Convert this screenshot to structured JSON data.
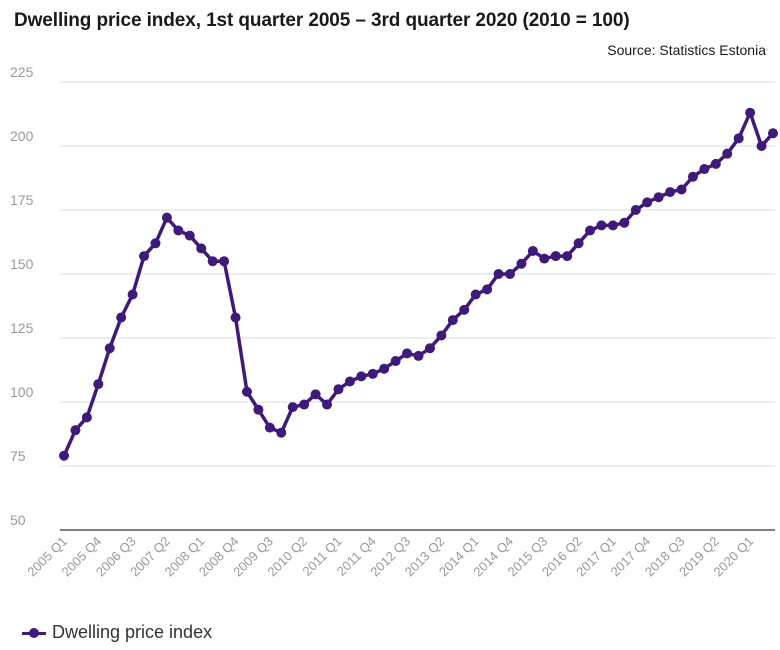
{
  "header": {
    "title": "Dwelling price index, 1st quarter 2005 – 3rd quarter 2020 (2010 = 100)",
    "source": "Source: Statistics Estonia"
  },
  "colors": {
    "series": "#3f1a7a",
    "grid": "#dddddd",
    "axis": "#333333",
    "tick": "#999999"
  },
  "chart_data": {
    "type": "line",
    "title": "Dwelling price index, 1st quarter 2005 – 3rd quarter 2020 (2010 = 100)",
    "xlabel": "",
    "ylabel": "",
    "ylim": [
      50,
      225
    ],
    "yticks": [
      50,
      75,
      100,
      125,
      150,
      175,
      200,
      225
    ],
    "grid": true,
    "legend_position": "bottom-left",
    "x": [
      "2005 Q1",
      "2005 Q2",
      "2005 Q3",
      "2005 Q4",
      "2006 Q1",
      "2006 Q2",
      "2006 Q3",
      "2006 Q4",
      "2007 Q1",
      "2007 Q2",
      "2007 Q3",
      "2007 Q4",
      "2008 Q1",
      "2008 Q2",
      "2008 Q3",
      "2008 Q4",
      "2009 Q1",
      "2009 Q2",
      "2009 Q3",
      "2009 Q4",
      "2010 Q1",
      "2010 Q2",
      "2010 Q3",
      "2010 Q4",
      "2011 Q1",
      "2011 Q2",
      "2011 Q3",
      "2011 Q4",
      "2012 Q1",
      "2012 Q2",
      "2012 Q3",
      "2012 Q4",
      "2013 Q1",
      "2013 Q2",
      "2013 Q3",
      "2013 Q4",
      "2014 Q1",
      "2014 Q2",
      "2014 Q3",
      "2014 Q4",
      "2015 Q1",
      "2015 Q2",
      "2015 Q3",
      "2015 Q4",
      "2016 Q1",
      "2016 Q2",
      "2016 Q3",
      "2016 Q4",
      "2017 Q1",
      "2017 Q2",
      "2017 Q3",
      "2017 Q4",
      "2018 Q1",
      "2018 Q2",
      "2018 Q3",
      "2018 Q4",
      "2019 Q1",
      "2019 Q2",
      "2019 Q3",
      "2019 Q4",
      "2020 Q1",
      "2020 Q2",
      "2020 Q3"
    ],
    "tick_labels": [
      "2005 Q1",
      "2005 Q4",
      "2006 Q3",
      "2007 Q2",
      "2008 Q1",
      "2008 Q4",
      "2009 Q3",
      "2010 Q2",
      "2011 Q1",
      "2011 Q4",
      "2012 Q3",
      "2013 Q2",
      "2014 Q1",
      "2014 Q4",
      "2015 Q3",
      "2016 Q2",
      "2017 Q1",
      "2017 Q4",
      "2018 Q3",
      "2019 Q2",
      "2020 Q1"
    ],
    "series": [
      {
        "name": "Dwelling price index",
        "values": [
          79,
          89,
          94,
          107,
          121,
          133,
          142,
          157,
          162,
          172,
          167,
          165,
          160,
          155,
          155,
          133,
          104,
          97,
          90,
          88,
          98,
          99,
          103,
          99,
          105,
          108,
          110,
          111,
          113,
          116,
          119,
          118,
          121,
          126,
          132,
          136,
          142,
          144,
          150,
          150,
          154,
          159,
          156,
          157,
          157,
          162,
          167,
          169,
          169,
          170,
          175,
          178,
          180,
          182,
          183,
          188,
          191,
          193,
          197,
          203,
          213,
          200,
          205
        ]
      }
    ]
  }
}
